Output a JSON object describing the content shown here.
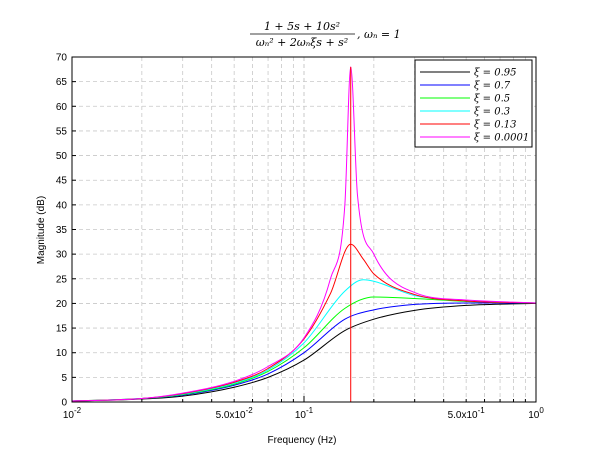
{
  "chart_data": {
    "type": "line",
    "title": {
      "numerator": "1 + 5s + 10s²",
      "denominator": "ωₙ² + 2ωₙξs + s²",
      "suffix": ", ωₙ = 1"
    },
    "xlabel": "Frequency (Hz)",
    "ylabel": "Magnitude (dB)",
    "xscale": "log",
    "xlim": [
      0.01,
      1
    ],
    "ylim": [
      0,
      70
    ],
    "grid": true,
    "legend_position": "top-right",
    "x_tick_labels": [
      {
        "x": 0.01,
        "base": "10",
        "exp": "-2"
      },
      {
        "x": 0.05,
        "base": "5.0x10",
        "exp": "-2"
      },
      {
        "x": 0.1,
        "base": "10",
        "exp": "-1"
      },
      {
        "x": 0.5,
        "base": "5.0x10",
        "exp": "-1"
      },
      {
        "x": 1,
        "base": "10",
        "exp": "0"
      }
    ],
    "y_ticks": [
      0,
      5,
      10,
      15,
      20,
      25,
      30,
      35,
      40,
      45,
      50,
      55,
      60,
      65,
      70
    ],
    "resonance_x": 0.159,
    "series": [
      {
        "name": "ξ = 0.95",
        "zeta": 0.95,
        "color": "#000000",
        "points": [
          [
            0.01,
            0.2
          ],
          [
            0.02,
            0.6
          ],
          [
            0.03,
            1.2
          ],
          [
            0.05,
            3.0
          ],
          [
            0.07,
            5.0
          ],
          [
            0.1,
            8.5
          ],
          [
            0.15,
            14.5
          ],
          [
            0.2,
            16.8
          ],
          [
            0.3,
            18.6
          ],
          [
            0.5,
            19.6
          ],
          [
            1,
            20.0
          ]
        ]
      },
      {
        "name": "ξ = 0.7",
        "zeta": 0.7,
        "color": "#0000ff",
        "points": [
          [
            0.01,
            0.2
          ],
          [
            0.02,
            0.7
          ],
          [
            0.03,
            1.4
          ],
          [
            0.05,
            3.4
          ],
          [
            0.07,
            5.7
          ],
          [
            0.1,
            10.0
          ],
          [
            0.15,
            16.8
          ],
          [
            0.2,
            18.7
          ],
          [
            0.3,
            19.8
          ],
          [
            0.5,
            20.1
          ],
          [
            1,
            20.1
          ]
        ]
      },
      {
        "name": "ξ = 0.5",
        "zeta": 0.5,
        "color": "#00ff00",
        "points": [
          [
            0.01,
            0.2
          ],
          [
            0.02,
            0.7
          ],
          [
            0.03,
            1.5
          ],
          [
            0.05,
            3.6
          ],
          [
            0.07,
            6.2
          ],
          [
            0.1,
            11.0
          ],
          [
            0.15,
            19.0
          ],
          [
            0.2,
            21.3
          ],
          [
            0.3,
            21.0
          ],
          [
            0.5,
            20.4
          ],
          [
            1,
            20.1
          ]
        ]
      },
      {
        "name": "ξ = 0.3",
        "zeta": 0.3,
        "color": "#00ffff",
        "points": [
          [
            0.01,
            0.2
          ],
          [
            0.02,
            0.7
          ],
          [
            0.03,
            1.6
          ],
          [
            0.05,
            3.8
          ],
          [
            0.07,
            6.5
          ],
          [
            0.1,
            12.0
          ],
          [
            0.15,
            22.5
          ],
          [
            0.18,
            24.8
          ],
          [
            0.2,
            24.5
          ],
          [
            0.3,
            21.6
          ],
          [
            0.5,
            20.5
          ],
          [
            1,
            20.1
          ]
        ]
      },
      {
        "name": "ξ = 0.13",
        "zeta": 0.13,
        "color": "#ff0000",
        "points": [
          [
            0.01,
            0.2
          ],
          [
            0.02,
            0.7
          ],
          [
            0.03,
            1.7
          ],
          [
            0.05,
            4.0
          ],
          [
            0.07,
            6.8
          ],
          [
            0.1,
            12.8
          ],
          [
            0.13,
            22.0
          ],
          [
            0.159,
            32.0
          ],
          [
            0.18,
            29.0
          ],
          [
            0.2,
            26.0
          ],
          [
            0.3,
            21.8
          ],
          [
            0.5,
            20.5
          ],
          [
            1,
            20.1
          ]
        ]
      },
      {
        "name": "ξ = 0.0001",
        "zeta": 0.0001,
        "color": "#ff00ff",
        "points": [
          [
            0.01,
            0.2
          ],
          [
            0.02,
            0.7
          ],
          [
            0.03,
            1.8
          ],
          [
            0.05,
            4.2
          ],
          [
            0.07,
            7.2
          ],
          [
            0.1,
            13.0
          ],
          [
            0.13,
            25.0
          ],
          [
            0.15,
            40.0
          ],
          [
            0.159,
            68.0
          ],
          [
            0.17,
            42.0
          ],
          [
            0.2,
            30.0
          ],
          [
            0.3,
            22.2
          ],
          [
            0.5,
            20.7
          ],
          [
            1,
            20.1
          ]
        ]
      }
    ]
  }
}
